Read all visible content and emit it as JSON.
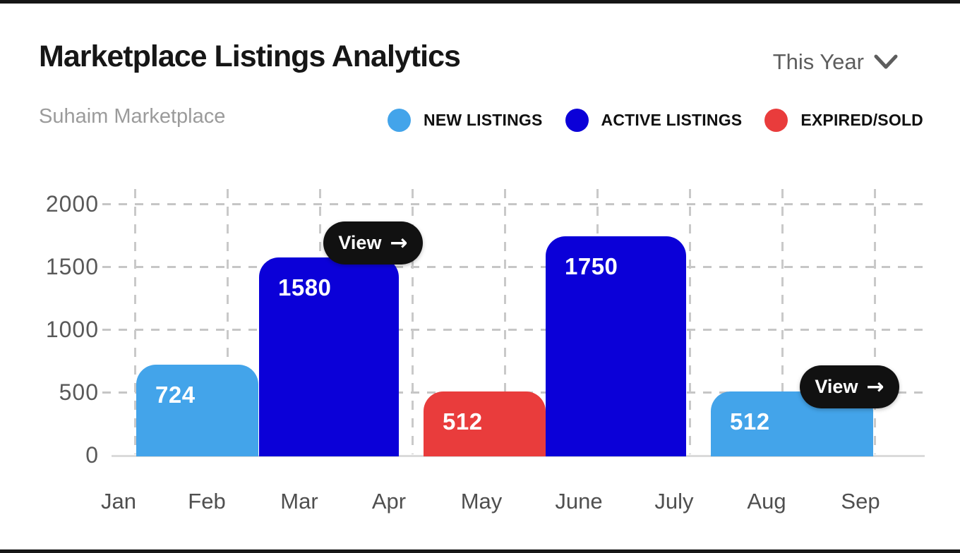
{
  "page": {
    "title": "Marketplace Listings Analytics",
    "subtitle": "Suhaim Marketplace",
    "period_selector": {
      "label": "This Year",
      "icon": "chevron-down-icon"
    }
  },
  "legend": {
    "items": [
      {
        "label": "NEW LISTINGS",
        "color": "#43A4EA"
      },
      {
        "label": "ACTIVE LISTINGS",
        "color": "#0B00D8"
      },
      {
        "label": "EXPIRED/SOLD",
        "color": "#E93C3C"
      }
    ]
  },
  "chart_data": {
    "type": "bar",
    "title": "Marketplace Listings Analytics",
    "subtitle": "Suhaim Marketplace",
    "x_categories": [
      "Jan",
      "Feb",
      "Mar",
      "Apr",
      "May",
      "June",
      "July",
      "Aug",
      "Sep"
    ],
    "y_ticks": [
      0,
      500,
      1000,
      1500,
      2000
    ],
    "ylim": [
      0,
      2000
    ],
    "grid": true,
    "legend_position": "top-right",
    "bars": [
      {
        "series": "NEW LISTINGS",
        "value": 724,
        "label": "724",
        "x_span": [
          "Jan",
          "Feb"
        ],
        "color": "#43A4EA"
      },
      {
        "series": "ACTIVE LISTINGS",
        "value": 1580,
        "label": "1580",
        "x_span": [
          "Mar",
          "Apr"
        ],
        "color": "#0B00D8"
      },
      {
        "series": "EXPIRED/SOLD",
        "value": 512,
        "label": "512",
        "x_span": [
          "May"
        ],
        "color": "#E93C3C"
      },
      {
        "series": "ACTIVE LISTINGS",
        "value": 1750,
        "label": "1750",
        "x_span": [
          "June",
          "July"
        ],
        "color": "#0B00D8"
      },
      {
        "series": "NEW LISTINGS",
        "value": 512,
        "label": "512",
        "x_span": [
          "Aug",
          "Sep"
        ],
        "color": "#43A4EA"
      }
    ],
    "view_buttons": [
      {
        "label": "View",
        "icon": "arrow-right-icon",
        "arrow": "→",
        "color": "#111111",
        "attached_to_bar": 1
      },
      {
        "label": "View",
        "icon": "arrow-right-icon",
        "arrow": "→",
        "color": "#111111",
        "attached_to_bar": 4
      }
    ]
  }
}
